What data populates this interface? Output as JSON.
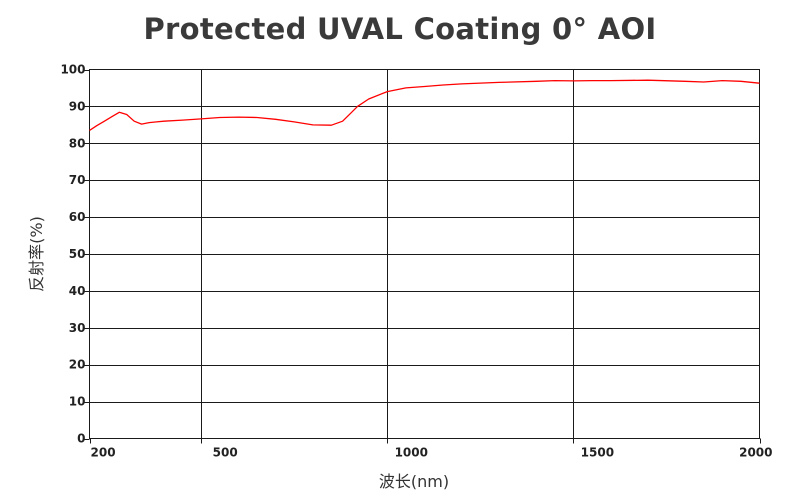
{
  "chart_data": {
    "type": "line",
    "title": "Protected UVAL Coating 0° AOI",
    "xlabel": "波长(nm)",
    "ylabel": "反射率(%)",
    "xlim": [
      200,
      2000
    ],
    "ylim": [
      0,
      100
    ],
    "x_ticks": [
      200,
      500,
      1000,
      1500,
      2000
    ],
    "y_ticks": [
      0,
      10,
      20,
      30,
      40,
      50,
      60,
      70,
      80,
      90,
      100
    ],
    "grid": true,
    "line_color": "#ff0000",
    "series": [
      {
        "x": [
          200,
          220,
          240,
          260,
          280,
          300,
          320,
          340,
          360,
          380,
          400,
          450,
          500,
          550,
          600,
          650,
          700,
          750,
          800,
          850,
          880,
          900,
          920,
          950,
          1000,
          1050,
          1100,
          1150,
          1200,
          1300,
          1400,
          1450,
          1500,
          1550,
          1600,
          1700,
          1800,
          1850,
          1900,
          1950,
          2000
        ],
        "y": [
          83.5,
          84.8,
          86.0,
          87.2,
          88.4,
          87.8,
          86.0,
          85.2,
          85.6,
          85.8,
          86.0,
          86.3,
          86.6,
          87.0,
          87.1,
          87.0,
          86.5,
          85.8,
          85.0,
          84.9,
          86.0,
          88.0,
          90.0,
          92.0,
          94.0,
          95.0,
          95.4,
          95.8,
          96.1,
          96.5,
          96.8,
          97.0,
          96.9,
          97.0,
          97.0,
          97.1,
          96.8,
          96.6,
          97.0,
          96.8,
          96.3
        ]
      }
    ]
  }
}
